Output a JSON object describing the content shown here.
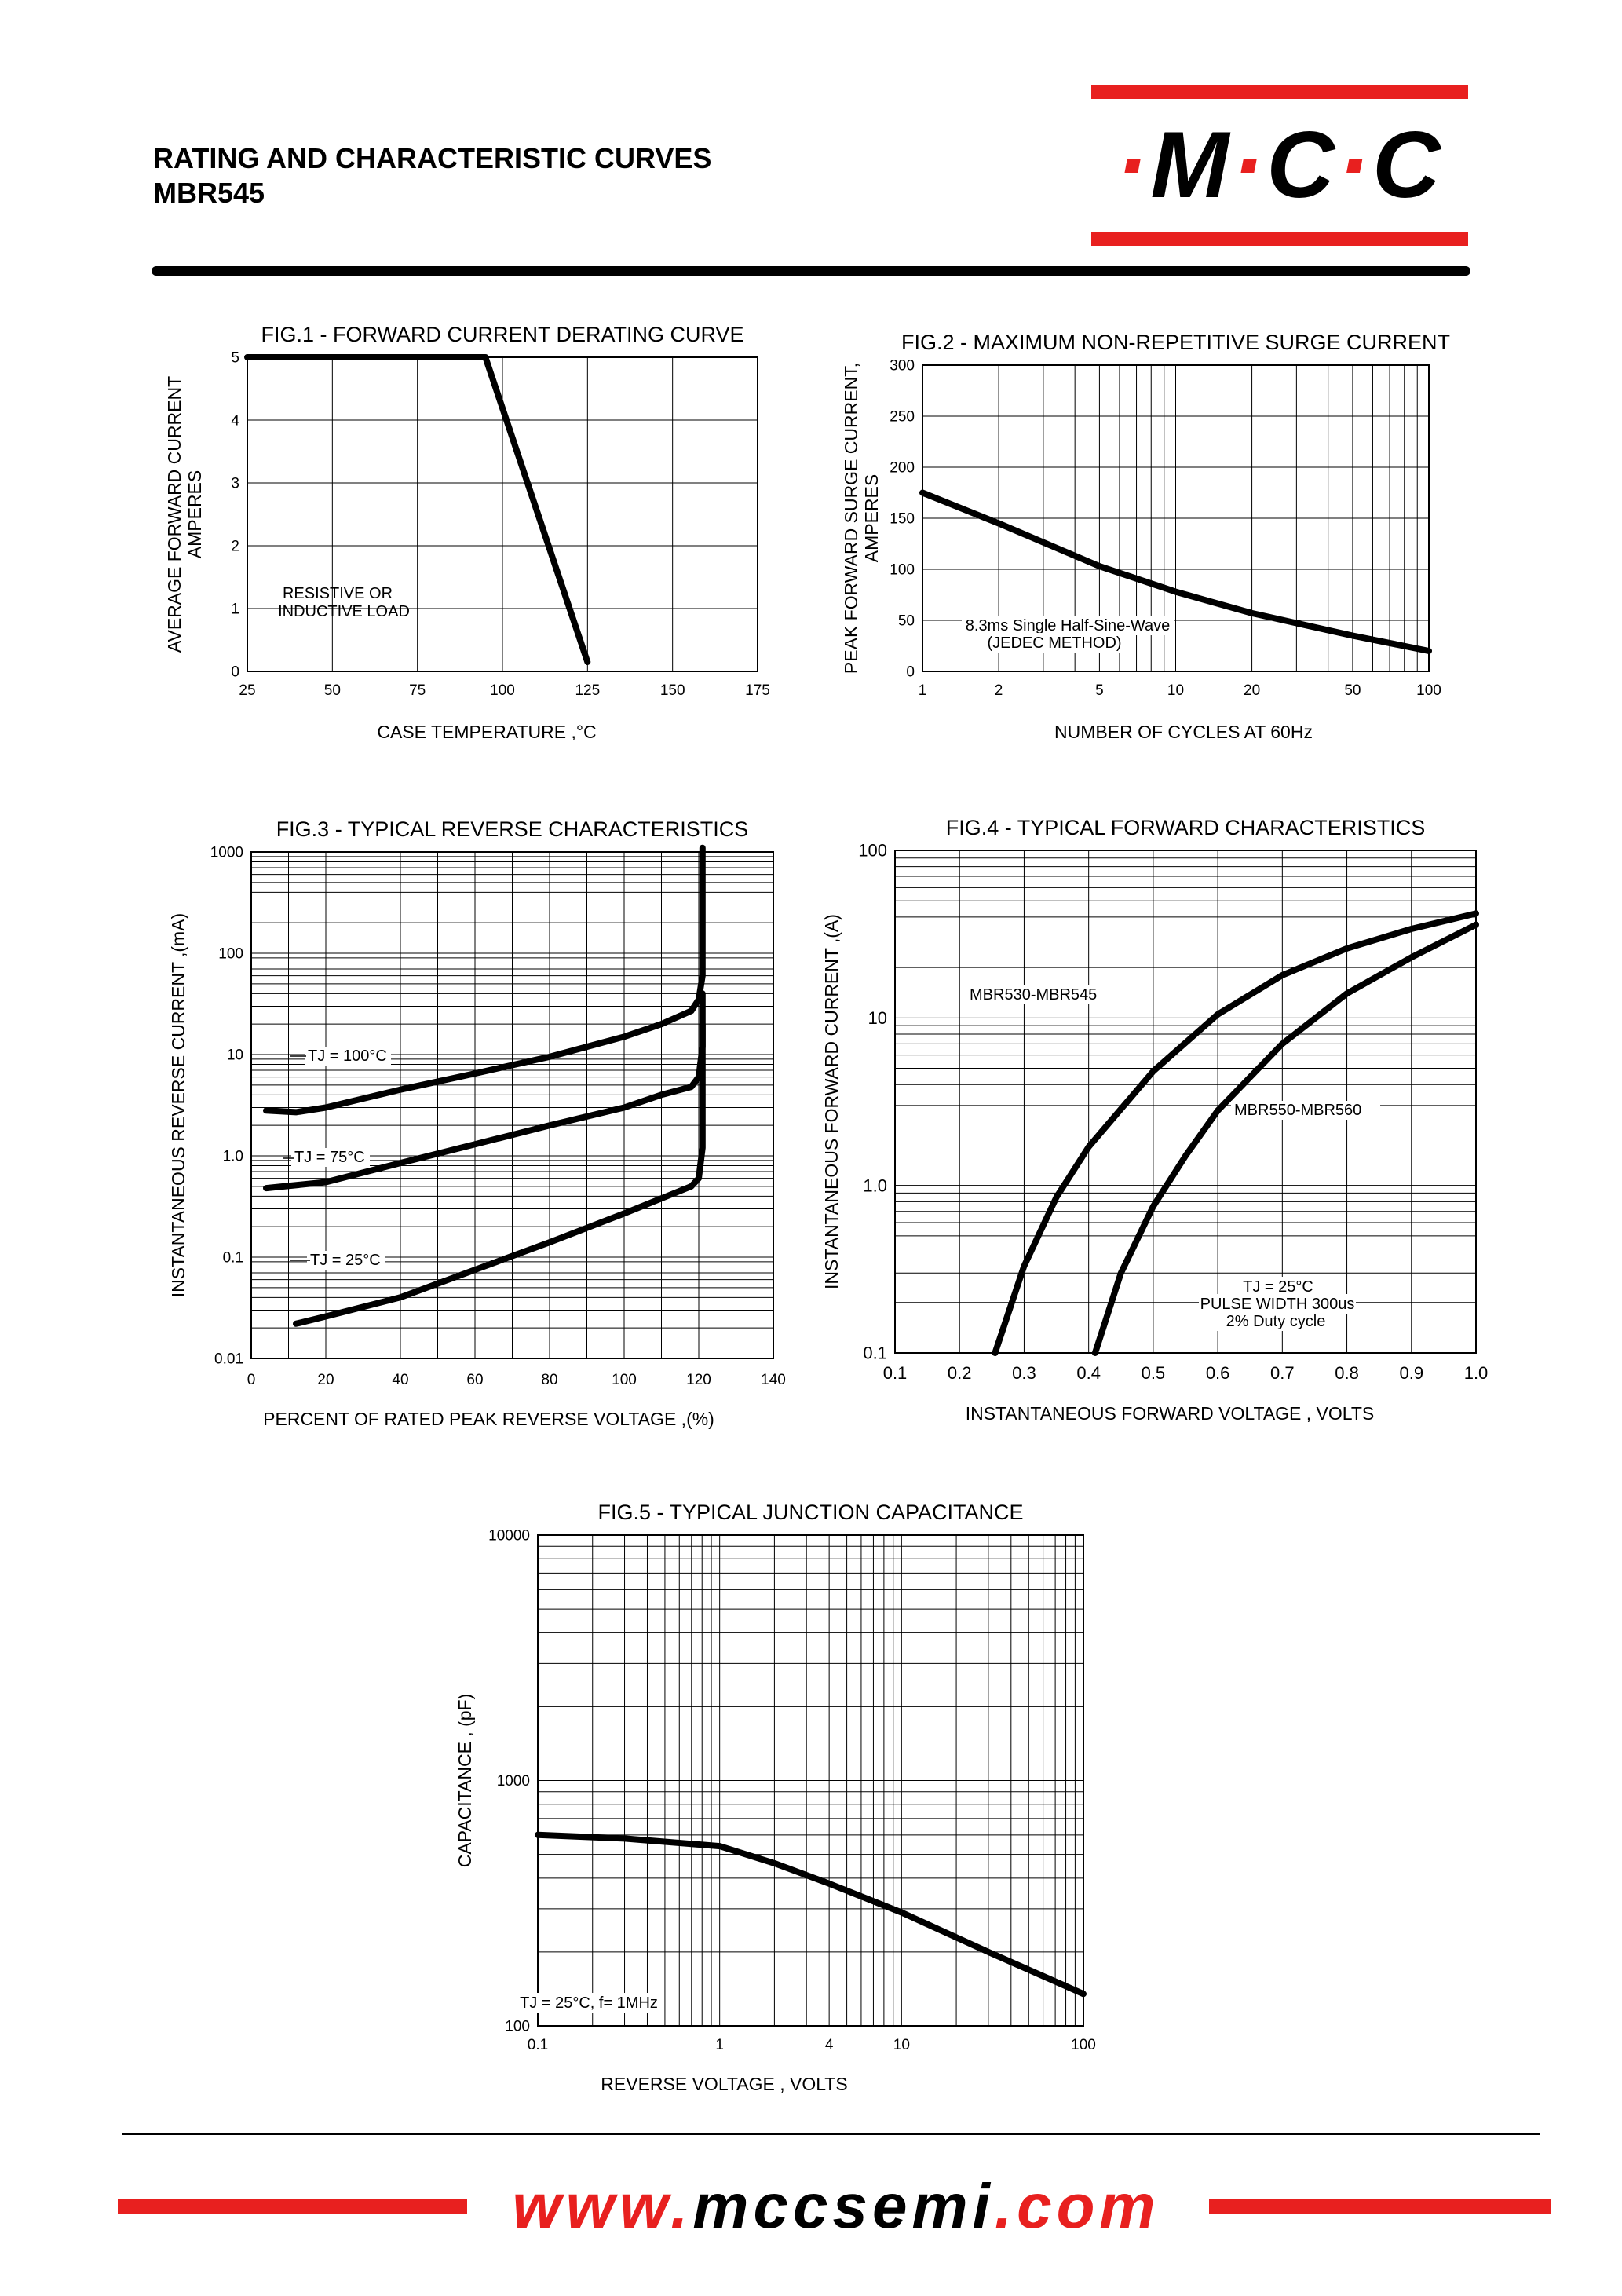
{
  "header": {
    "title_line1": "RATING AND CHARACTERISTIC CURVES",
    "title_line2": "MBR545"
  },
  "logo": {
    "letters": [
      "M",
      "C",
      "C"
    ],
    "separator": "·"
  },
  "footer": {
    "url_prefix": "www.",
    "url_main": "mccsemi",
    "url_suffix": ".com"
  },
  "colors": {
    "brand_red": "#e8201f",
    "ink": "#000000"
  },
  "chart_data": [
    {
      "id": "fig1",
      "type": "line",
      "title": "FIG.1 - FORWARD CURRENT DERATING CURVE",
      "xlabel": "CASE TEMPERATURE ,°C",
      "ylabel": [
        "AVERAGE FORWARD CURRENT",
        "AMPERES"
      ],
      "xlim": [
        25,
        175
      ],
      "ylim": [
        0,
        5
      ],
      "xticks": [
        25,
        50,
        75,
        100,
        125,
        150,
        175
      ],
      "yticks": [
        0,
        1,
        2,
        3,
        4,
        5
      ],
      "annotations": [
        "RESISTIVE OR",
        "INDUCTIVE LOAD"
      ],
      "series": [
        {
          "x": [
            25,
            95,
            125
          ],
          "y": [
            5,
            5,
            0.15
          ]
        }
      ]
    },
    {
      "id": "fig2",
      "type": "line",
      "title": "FIG.2 - MAXIMUM NON-REPETITIVE SURGE CURRENT",
      "xlabel": "NUMBER OF CYCLES AT 60Hz",
      "ylabel": [
        "PEAK FORWARD SURGE CURRENT,",
        "AMPERES"
      ],
      "xscale": "log",
      "xlim": [
        1,
        100
      ],
      "ylim": [
        0,
        300
      ],
      "xticks": [
        1,
        2,
        5,
        10,
        20,
        50,
        100
      ],
      "yticks": [
        0,
        50,
        100,
        150,
        200,
        250,
        300
      ],
      "annotations": [
        "8.3ms Single Half-Sine-Wave",
        "(JEDEC METHOD)"
      ],
      "series": [
        {
          "x": [
            1,
            2,
            5,
            10,
            20,
            50,
            100
          ],
          "y": [
            175,
            145,
            103,
            78,
            57,
            35,
            20
          ]
        }
      ]
    },
    {
      "id": "fig3",
      "type": "line",
      "title": "FIG.3 - TYPICAL REVERSE CHARACTERISTICS",
      "xlabel": "PERCENT OF RATED PEAK REVERSE VOLTAGE ,(%)",
      "ylabel": [
        "INSTANTANEOUS REVERSE CURRENT ,(mA)"
      ],
      "yscale": "log",
      "xlim": [
        0,
        140
      ],
      "ylim": [
        0.01,
        1000
      ],
      "xticks": [
        0,
        20,
        40,
        60,
        80,
        100,
        120,
        140
      ],
      "yticks": [
        "0.01",
        "0.1",
        "1.0",
        "10",
        "100",
        "1000"
      ],
      "series": [
        {
          "name": "TJ = 100°C",
          "x": [
            4,
            12,
            20,
            40,
            60,
            80,
            100,
            110,
            118,
            120,
            121,
            121,
            121
          ],
          "y": [
            2.8,
            2.7,
            3.0,
            4.5,
            6.5,
            9.5,
            15,
            20,
            27,
            35,
            60,
            300,
            1100
          ]
        },
        {
          "name": "TJ = 75°C",
          "x": [
            4,
            20,
            40,
            60,
            80,
            100,
            110,
            118,
            120,
            121,
            121
          ],
          "y": [
            0.48,
            0.55,
            0.85,
            1.3,
            2.0,
            3.0,
            4.0,
            4.8,
            6,
            12,
            40
          ]
        },
        {
          "name": "TJ = 25°C",
          "x": [
            12,
            20,
            40,
            60,
            80,
            100,
            110,
            118,
            120,
            121,
            121
          ],
          "y": [
            0.022,
            0.026,
            0.04,
            0.075,
            0.14,
            0.27,
            0.38,
            0.5,
            0.6,
            1.2,
            20
          ]
        }
      ]
    },
    {
      "id": "fig4",
      "type": "line",
      "title": "FIG.4 - TYPICAL FORWARD CHARACTERISTICS",
      "xlabel": "INSTANTANEOUS FORWARD VOLTAGE , VOLTS",
      "ylabel": [
        "INSTANTANEOUS  FORWARD CURRENT ,(A)"
      ],
      "yscale": "log",
      "xlim": [
        0.1,
        1.0
      ],
      "ylim": [
        0.1,
        100
      ],
      "xticks": [
        "0.1",
        "0.2",
        "0.3",
        "0.4",
        "0.5",
        "0.6",
        "0.7",
        "0.8",
        "0.9",
        "1.0"
      ],
      "yticks": [
        "0.1",
        "1.0",
        "10",
        "100"
      ],
      "annotations": [
        "TJ = 25°C",
        "PULSE WIDTH 300us",
        "2% Duty cycle"
      ],
      "series": [
        {
          "name": "MBR530-MBR545",
          "x": [
            0.255,
            0.3,
            0.35,
            0.4,
            0.5,
            0.6,
            0.7,
            0.8,
            0.9,
            1.0
          ],
          "y": [
            0.1,
            0.33,
            0.85,
            1.7,
            4.8,
            10.5,
            18,
            26,
            34,
            42
          ]
        },
        {
          "name": "MBR550-MBR560",
          "x": [
            0.41,
            0.45,
            0.5,
            0.55,
            0.6,
            0.7,
            0.8,
            0.9,
            1.0
          ],
          "y": [
            0.1,
            0.3,
            0.75,
            1.5,
            2.8,
            7,
            14,
            23,
            36
          ]
        }
      ]
    },
    {
      "id": "fig5",
      "type": "line",
      "title": "FIG.5 - TYPICAL JUNCTION CAPACITANCE",
      "xlabel": "REVERSE VOLTAGE , VOLTS",
      "ylabel": [
        "CAPACITANCE , (pF)"
      ],
      "xscale": "log",
      "yscale": "log",
      "xlim": [
        0.1,
        100
      ],
      "ylim": [
        100,
        10000
      ],
      "xticks": [
        "0.1",
        "1",
        "4",
        "10",
        "100"
      ],
      "yticks": [
        "100",
        "1000",
        "10000"
      ],
      "annotations": [
        "TJ = 25°C, f= 1MHz"
      ],
      "series": [
        {
          "x": [
            0.1,
            0.3,
            1,
            2,
            4,
            10,
            30,
            100
          ],
          "y": [
            600,
            580,
            540,
            460,
            380,
            290,
            200,
            135
          ]
        }
      ]
    }
  ]
}
